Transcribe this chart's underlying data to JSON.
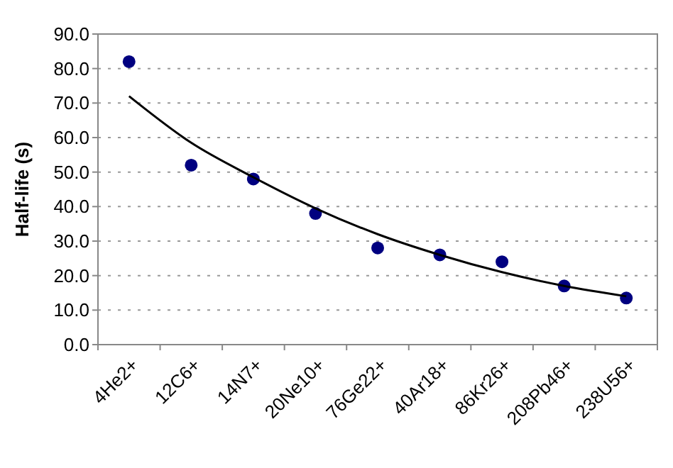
{
  "chart_data": {
    "type": "scatter",
    "ylabel": "Half-life (s)",
    "categories": [
      "4He2+",
      "12C6+",
      "14N7+",
      "20Ne10+",
      "76Ge22+",
      "40Ar18+",
      "86Kr26+",
      "208Pb46+",
      "238U56+"
    ],
    "series": [
      {
        "color": "#000080",
        "marker": "circle",
        "values": [
          82,
          52,
          48,
          38,
          28,
          26,
          24,
          17,
          13.5
        ]
      },
      {
        "type": "line",
        "color": "#000000",
        "line_style": "solid",
        "values": [
          72,
          58.5,
          48.5,
          39.5,
          32,
          26,
          21,
          17,
          14
        ]
      }
    ],
    "ylim": [
      0,
      90
    ],
    "yticks": [
      {
        "value": 0,
        "label": "0.0"
      },
      {
        "value": 10,
        "label": "10.0"
      },
      {
        "value": 20,
        "label": "20.0"
      },
      {
        "value": 30,
        "label": "30.0"
      },
      {
        "value": 40,
        "label": "40.0"
      },
      {
        "value": 50,
        "label": "50.0"
      },
      {
        "value": 60,
        "label": "60.0"
      },
      {
        "value": 70,
        "label": "70.0"
      },
      {
        "value": 80,
        "label": "80.0"
      },
      {
        "value": 90,
        "label": "90.0"
      }
    ],
    "grid": "y"
  }
}
